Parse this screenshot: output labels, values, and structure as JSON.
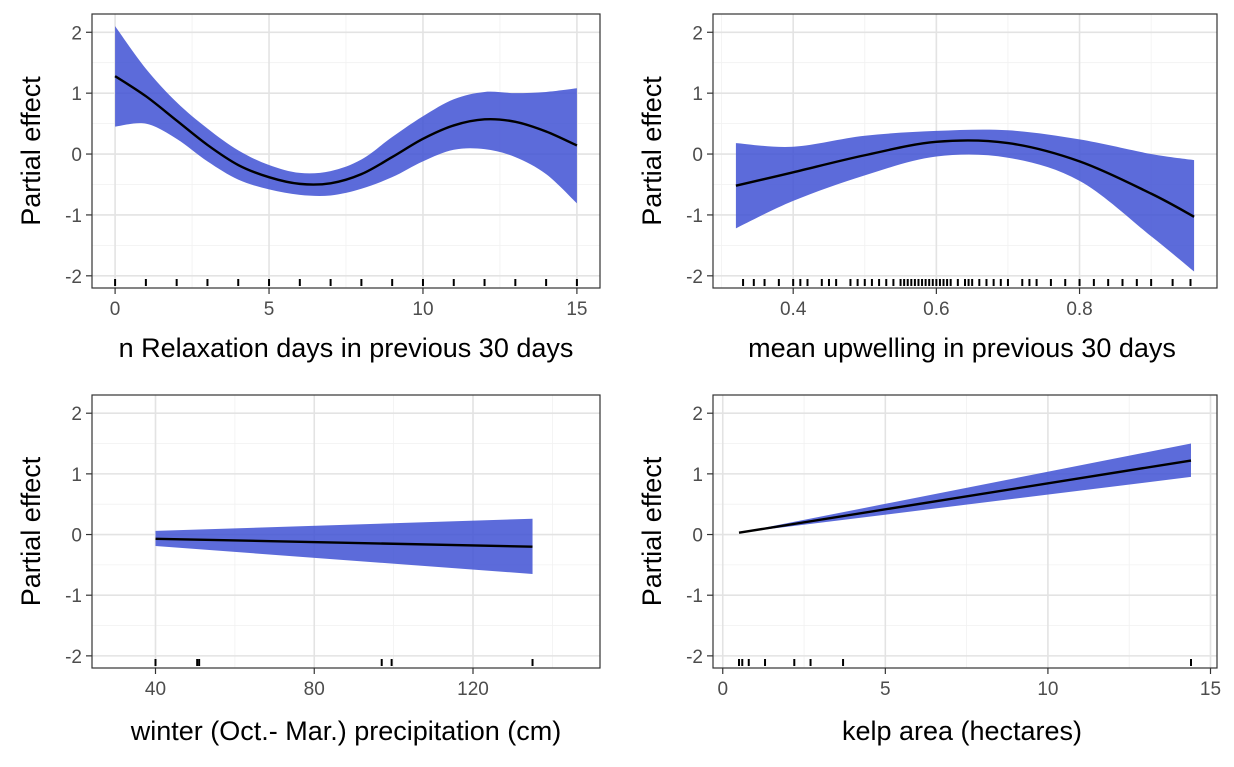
{
  "colors": {
    "band": "#3f51d4",
    "line": "#000000",
    "grid": "#e3e3e3",
    "border": "#333333"
  },
  "chart_data": [
    {
      "type": "line",
      "xlabel": "n Relaxation days in previous 30 days",
      "ylabel": "Partial effect",
      "xlim": [
        -0.75,
        15.75
      ],
      "ylim": [
        -2.2,
        2.3
      ],
      "xticks": [
        0,
        5,
        10,
        15
      ],
      "yticks": [
        -2,
        -1,
        0,
        1,
        2
      ],
      "grid": true,
      "series": [
        {
          "x": [
            0,
            1,
            2,
            3,
            4,
            5,
            6,
            7,
            8,
            9,
            10,
            11,
            12,
            13,
            14,
            15
          ],
          "fit": [
            1.28,
            0.95,
            0.55,
            0.15,
            -0.18,
            -0.38,
            -0.49,
            -0.48,
            -0.33,
            -0.05,
            0.25,
            0.47,
            0.57,
            0.53,
            0.37,
            0.14
          ],
          "lower": [
            0.45,
            0.5,
            0.25,
            -0.12,
            -0.42,
            -0.58,
            -0.67,
            -0.68,
            -0.57,
            -0.38,
            -0.12,
            0.07,
            0.08,
            -0.05,
            -0.33,
            -0.81
          ],
          "upper": [
            2.1,
            1.4,
            0.85,
            0.42,
            0.06,
            -0.18,
            -0.31,
            -0.28,
            -0.09,
            0.28,
            0.62,
            0.9,
            1.02,
            1.0,
            1.02,
            1.08
          ]
        }
      ],
      "rug": [
        0,
        1,
        2,
        3,
        4,
        5,
        6,
        7,
        8,
        9,
        10,
        11,
        12,
        13,
        14,
        15
      ]
    },
    {
      "type": "line",
      "xlabel": "mean upwelling in previous 30 days",
      "ylabel": "Partial effect",
      "xlim": [
        0.288,
        0.992
      ],
      "ylim": [
        -2.2,
        2.3
      ],
      "xticks": [
        0.4,
        0.6,
        0.8
      ],
      "yticks": [
        -2,
        -1,
        0,
        1,
        2
      ],
      "grid": true,
      "series": [
        {
          "x": [
            0.32,
            0.4,
            0.5,
            0.6,
            0.7,
            0.8,
            0.9,
            0.96
          ],
          "fit": [
            -0.52,
            -0.3,
            -0.02,
            0.2,
            0.18,
            -0.12,
            -0.65,
            -1.03
          ],
          "lower": [
            -1.22,
            -0.77,
            -0.35,
            -0.04,
            -0.06,
            -0.44,
            -1.35,
            -1.93
          ],
          "upper": [
            0.18,
            0.12,
            0.3,
            0.38,
            0.39,
            0.24,
            0.0,
            -0.1
          ]
        }
      ],
      "rug": [
        0.33,
        0.345,
        0.36,
        0.38,
        0.4,
        0.41,
        0.42,
        0.44,
        0.45,
        0.46,
        0.48,
        0.49,
        0.5,
        0.51,
        0.52,
        0.53,
        0.54,
        0.55,
        0.555,
        0.56,
        0.565,
        0.57,
        0.575,
        0.58,
        0.585,
        0.59,
        0.595,
        0.6,
        0.605,
        0.61,
        0.615,
        0.62,
        0.63,
        0.64,
        0.645,
        0.65,
        0.66,
        0.67,
        0.68,
        0.69,
        0.7,
        0.72,
        0.73,
        0.74,
        0.76,
        0.78,
        0.8,
        0.82,
        0.84,
        0.86,
        0.88,
        0.9,
        0.93,
        0.955
      ]
    },
    {
      "type": "line",
      "xlabel": "winter (Oct.- Mar.) precipitation (cm)",
      "ylabel": "Partial effect",
      "xlim": [
        24,
        152
      ],
      "ylim": [
        -2.2,
        2.3
      ],
      "xticks": [
        40,
        80,
        120
      ],
      "yticks": [
        -2,
        -1,
        0,
        1,
        2
      ],
      "grid": true,
      "series": [
        {
          "x": [
            40,
            135
          ],
          "fit": [
            -0.07,
            -0.2
          ],
          "lower": [
            -0.19,
            -0.65
          ],
          "upper": [
            0.06,
            0.26
          ]
        }
      ],
      "rug": [
        40,
        50.5,
        51,
        97,
        99.5,
        135
      ]
    },
    {
      "type": "line",
      "xlabel": "kelp area (hectares)",
      "ylabel": "Partial effect",
      "xlim": [
        -0.3,
        15.2
      ],
      "ylim": [
        -2.2,
        2.3
      ],
      "xticks": [
        0,
        5,
        10,
        15
      ],
      "yticks": [
        -2,
        -1,
        0,
        1,
        2
      ],
      "grid": true,
      "series": [
        {
          "x": [
            0.5,
            14.4
          ],
          "fit": [
            0.03,
            1.22
          ],
          "lower": [
            0.03,
            0.95
          ],
          "upper": [
            0.03,
            1.5
          ]
        }
      ],
      "rug": [
        0.5,
        0.6,
        0.8,
        1.3,
        2.2,
        2.7,
        3.7,
        14.4
      ]
    }
  ]
}
